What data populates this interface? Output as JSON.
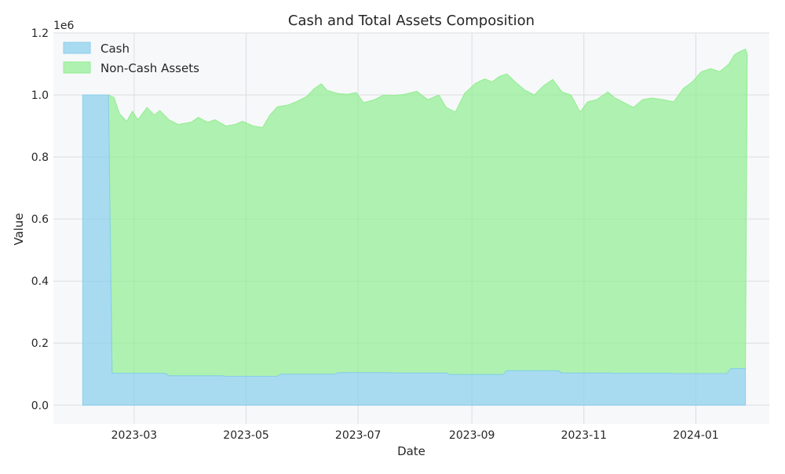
{
  "chart_data": {
    "type": "area",
    "stacked": true,
    "title": "Cash and Total Assets Composition",
    "xlabel": "Date",
    "ylabel": "Value",
    "y_multiplier_label": "1e6",
    "xlim": [
      "2023-01-16",
      "2024-02-10"
    ],
    "ylim": [
      -60000,
      1200000
    ],
    "yticks": [
      0,
      200000,
      400000,
      600000,
      800000,
      1000000,
      1200000
    ],
    "ytick_labels": [
      "0.0",
      "0.2",
      "0.4",
      "0.6",
      "0.8",
      "1.0",
      "1.2"
    ],
    "xticks": [
      "2023-03-01",
      "2023-05-01",
      "2023-07-01",
      "2023-09-01",
      "2023-11-01",
      "2024-01-01"
    ],
    "xtick_labels": [
      "2023-03",
      "2023-05",
      "2023-07",
      "2023-09",
      "2023-11",
      "2024-01"
    ],
    "grid": true,
    "legend": "top-left",
    "colors": {
      "cash": "#87ceeb",
      "noncash": "#90ee90",
      "plot_bg": "#f7f8fa",
      "grid": "#dcdde0"
    },
    "series": [
      {
        "name": "Cash",
        "color": "#87ceeb",
        "points": [
          [
            "2023-02-01",
            1000000
          ],
          [
            "2023-02-15",
            1000000
          ],
          [
            "2023-02-17",
            103000
          ],
          [
            "2023-03-18",
            103000
          ],
          [
            "2023-03-20",
            95000
          ],
          [
            "2023-04-18",
            95000
          ],
          [
            "2023-04-20",
            93000
          ],
          [
            "2023-05-18",
            93000
          ],
          [
            "2023-05-20",
            100000
          ],
          [
            "2023-06-18",
            100000
          ],
          [
            "2023-06-20",
            105000
          ],
          [
            "2023-07-18",
            105000
          ],
          [
            "2023-07-20",
            104000
          ],
          [
            "2023-08-18",
            104000
          ],
          [
            "2023-08-20",
            99000
          ],
          [
            "2023-09-18",
            99000
          ],
          [
            "2023-09-20",
            111000
          ],
          [
            "2023-10-18",
            111000
          ],
          [
            "2023-10-20",
            104000
          ],
          [
            "2023-11-15",
            104000
          ],
          [
            "2023-11-17",
            103000
          ],
          [
            "2023-12-18",
            103000
          ],
          [
            "2023-12-20",
            102000
          ],
          [
            "2024-01-18",
            102000
          ],
          [
            "2024-01-20",
            118000
          ],
          [
            "2024-01-28",
            118000
          ]
        ]
      },
      {
        "name": "Non-Cash Assets",
        "color": "#90ee90",
        "total_points": [
          [
            "2023-02-01",
            1000000
          ],
          [
            "2023-02-15",
            1000000
          ],
          [
            "2023-02-18",
            992000
          ],
          [
            "2023-02-21",
            940000
          ],
          [
            "2023-02-25",
            915000
          ],
          [
            "2023-02-28",
            948000
          ],
          [
            "2023-03-03",
            920000
          ],
          [
            "2023-03-08",
            960000
          ],
          [
            "2023-03-12",
            935000
          ],
          [
            "2023-03-15",
            950000
          ],
          [
            "2023-03-20",
            920000
          ],
          [
            "2023-03-25",
            905000
          ],
          [
            "2023-04-01",
            912000
          ],
          [
            "2023-04-05",
            928000
          ],
          [
            "2023-04-10",
            912000
          ],
          [
            "2023-04-14",
            920000
          ],
          [
            "2023-04-20",
            900000
          ],
          [
            "2023-04-25",
            905000
          ],
          [
            "2023-04-29",
            915000
          ],
          [
            "2023-05-05",
            900000
          ],
          [
            "2023-05-10",
            895000
          ],
          [
            "2023-05-14",
            935000
          ],
          [
            "2023-05-18",
            962000
          ],
          [
            "2023-05-24",
            968000
          ],
          [
            "2023-05-29",
            980000
          ],
          [
            "2023-06-03",
            995000
          ],
          [
            "2023-06-07",
            1020000
          ],
          [
            "2023-06-11",
            1036000
          ],
          [
            "2023-06-14",
            1015000
          ],
          [
            "2023-06-20",
            1005000
          ],
          [
            "2023-06-25",
            1002000
          ],
          [
            "2023-06-30",
            1008000
          ],
          [
            "2023-07-04",
            975000
          ],
          [
            "2023-07-10",
            985000
          ],
          [
            "2023-07-15",
            1000000
          ],
          [
            "2023-07-20",
            998000
          ],
          [
            "2023-07-26",
            1002000
          ],
          [
            "2023-08-02",
            1012000
          ],
          [
            "2023-08-08",
            985000
          ],
          [
            "2023-08-14",
            1000000
          ],
          [
            "2023-08-18",
            960000
          ],
          [
            "2023-08-23",
            945000
          ],
          [
            "2023-08-28",
            1005000
          ],
          [
            "2023-09-03",
            1038000
          ],
          [
            "2023-09-08",
            1052000
          ],
          [
            "2023-09-12",
            1042000
          ],
          [
            "2023-09-16",
            1060000
          ],
          [
            "2023-09-20",
            1068000
          ],
          [
            "2023-09-25",
            1040000
          ],
          [
            "2023-09-30",
            1015000
          ],
          [
            "2023-10-05",
            1000000
          ],
          [
            "2023-10-10",
            1030000
          ],
          [
            "2023-10-15",
            1050000
          ],
          [
            "2023-10-20",
            1010000
          ],
          [
            "2023-10-25",
            1000000
          ],
          [
            "2023-10-30",
            945000
          ],
          [
            "2023-11-03",
            978000
          ],
          [
            "2023-11-08",
            985000
          ],
          [
            "2023-11-14",
            1010000
          ],
          [
            "2023-11-18",
            990000
          ],
          [
            "2023-11-23",
            975000
          ],
          [
            "2023-11-28",
            960000
          ],
          [
            "2023-12-03",
            985000
          ],
          [
            "2023-12-08",
            990000
          ],
          [
            "2023-12-14",
            985000
          ],
          [
            "2023-12-20",
            978000
          ],
          [
            "2023-12-25",
            1020000
          ],
          [
            "2023-12-30",
            1042000
          ],
          [
            "2024-01-04",
            1075000
          ],
          [
            "2024-01-09",
            1085000
          ],
          [
            "2024-01-14",
            1075000
          ],
          [
            "2024-01-19",
            1100000
          ],
          [
            "2024-01-22",
            1130000
          ],
          [
            "2024-01-25",
            1140000
          ],
          [
            "2024-01-28",
            1148000
          ],
          [
            "2024-01-29",
            1130000
          ]
        ]
      }
    ]
  }
}
